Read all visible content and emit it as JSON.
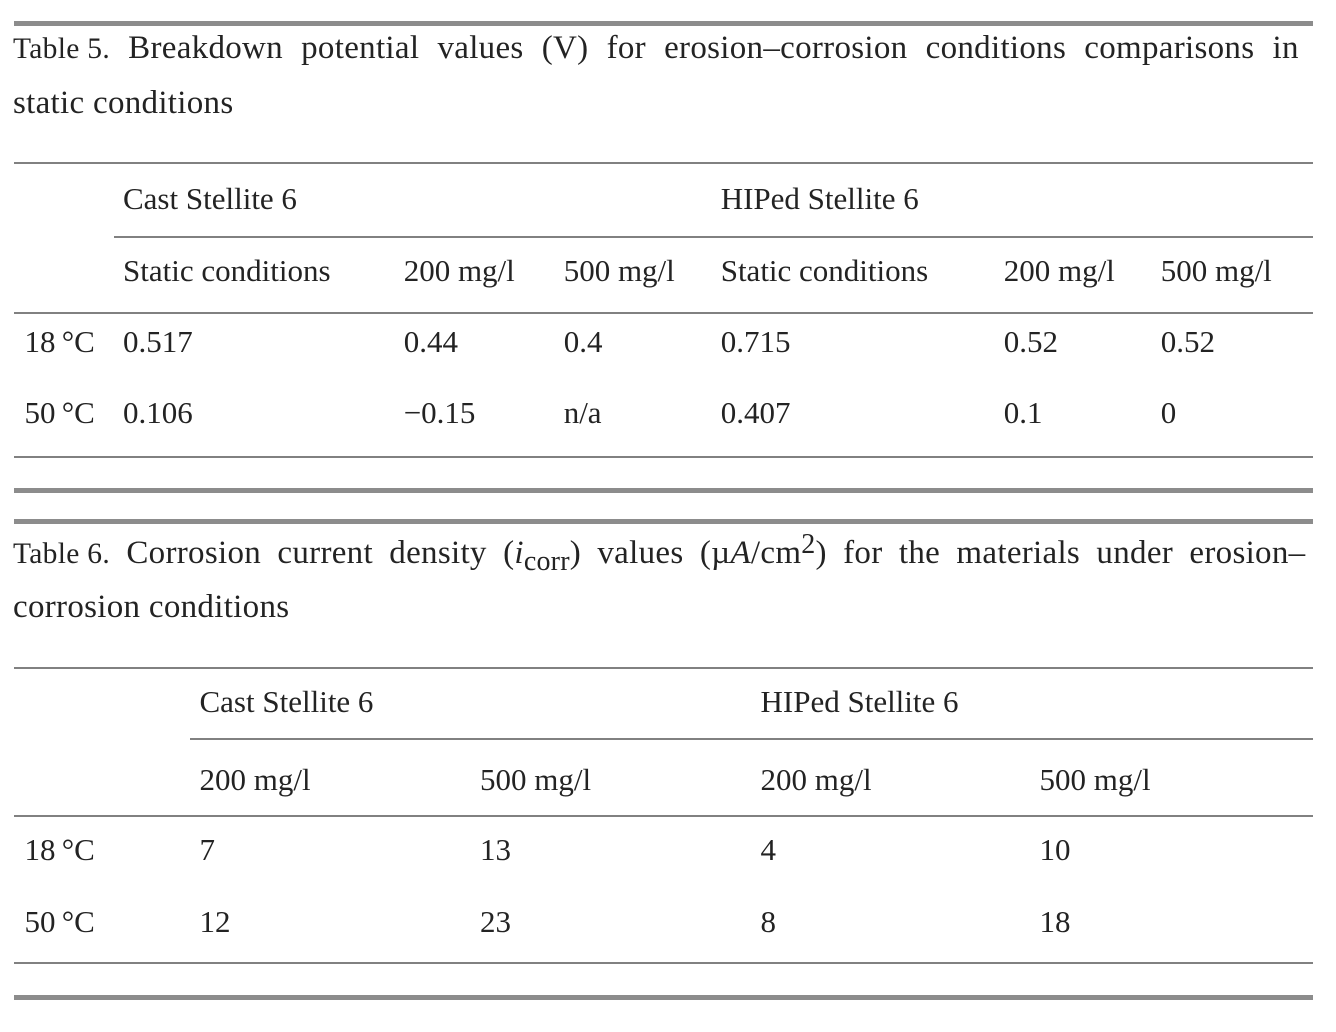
{
  "page": {
    "background": "#ffffff",
    "text_color": "#232323",
    "thick_rule_color": "#8c8c8c",
    "thin_rule_color": "#818181"
  },
  "tables": [
    {
      "label": "Table 5.",
      "caption_line1": "Breakdown potential values (V) for erosion–corrosion conditions comparisons in",
      "caption_line2": "static conditions",
      "column_groups": [
        "Cast Stellite 6",
        "HIPed Stellite 6"
      ],
      "sub_headers": [
        "Static conditions",
        "200 mg/l",
        "500 mg/l",
        "Static conditions",
        "200 mg/l",
        "500 mg/l"
      ],
      "rows": [
        {
          "label": "18 °C",
          "values": [
            "0.517",
            "0.44",
            "0.4",
            "0.715",
            "0.52",
            "0.52"
          ]
        },
        {
          "label": "50 °C",
          "values": [
            "0.106",
            "−0.15",
            "n/a",
            "0.407",
            "0.1",
            "0"
          ]
        }
      ]
    },
    {
      "label": "Table 6.",
      "caption_line1_segments": [
        {
          "t": "Corrosion current density ("
        },
        {
          "t": "i",
          "style": "italic"
        },
        {
          "t": "corr",
          "style": "sub"
        },
        {
          "t": ") values (µ"
        },
        {
          "t": "A",
          "style": "italic"
        },
        {
          "t": "/cm"
        },
        {
          "t": "2",
          "style": "sup"
        },
        {
          "t": ") for the materials under erosion–"
        }
      ],
      "caption_line2": "corrosion conditions",
      "column_groups": [
        "Cast Stellite 6",
        "HIPed Stellite 6"
      ],
      "sub_headers": [
        "200 mg/l",
        "500 mg/l",
        "200 mg/l",
        "500 mg/l"
      ],
      "rows": [
        {
          "label": "18 °C",
          "values": [
            "7",
            "13",
            "4",
            "10"
          ]
        },
        {
          "label": "50 °C",
          "values": [
            "12",
            "23",
            "8",
            "18"
          ]
        }
      ]
    }
  ]
}
